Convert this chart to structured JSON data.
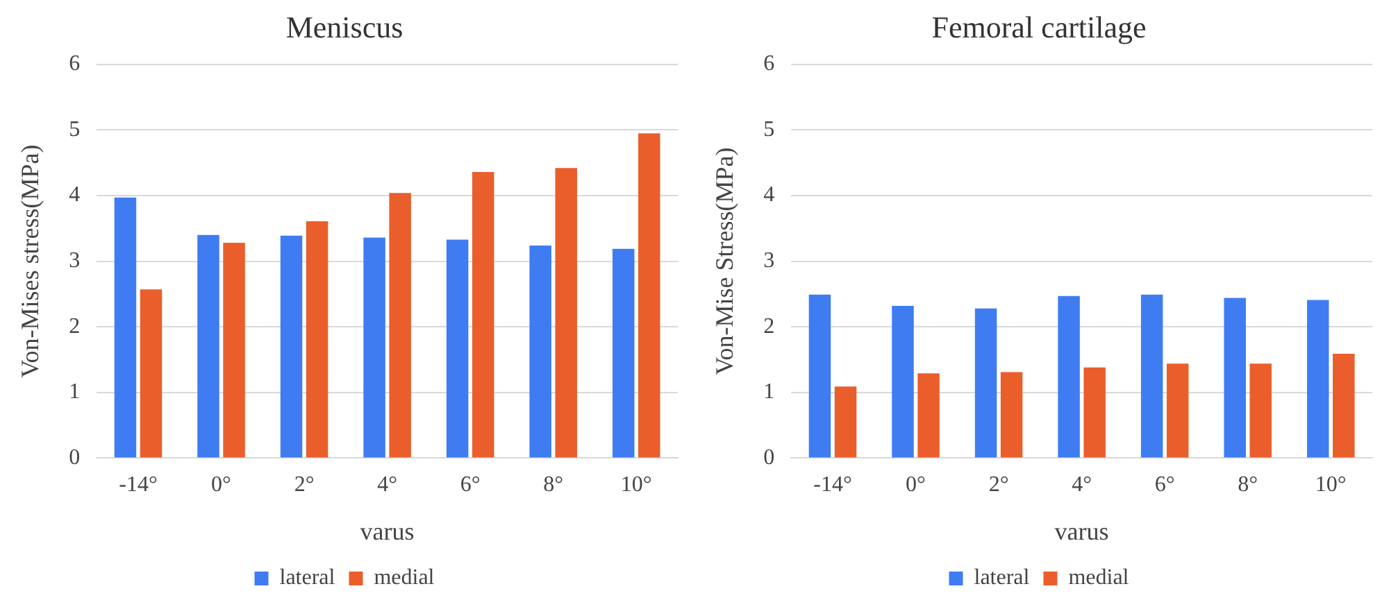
{
  "chart_data": [
    {
      "type": "bar",
      "title": "Meniscus",
      "xlabel": "varus",
      "ylabel": "Von-Mises stress(MPa)",
      "categories": [
        "-14°",
        "0°",
        "2°",
        "4°",
        "6°",
        "8°",
        "10°"
      ],
      "series": [
        {
          "name": "lateral",
          "color": "#3f7cf2",
          "values": [
            3.97,
            3.4,
            3.39,
            3.36,
            3.33,
            3.24,
            3.19
          ]
        },
        {
          "name": "medial",
          "color": "#ea5e2c",
          "values": [
            2.57,
            3.28,
            3.61,
            4.04,
            4.36,
            4.42,
            4.95
          ]
        }
      ],
      "ylim": [
        0,
        6
      ],
      "yticks": [
        0,
        1,
        2,
        3,
        4,
        5,
        6
      ],
      "grid": "y",
      "legend": "bottom"
    },
    {
      "type": "bar",
      "title": "Femoral cartilage",
      "xlabel": "varus",
      "ylabel": "Von-Mise Stress(MPa)",
      "categories": [
        "-14°",
        "0°",
        "2°",
        "4°",
        "6°",
        "8°",
        "10°"
      ],
      "series": [
        {
          "name": "lateral",
          "color": "#3f7cf2",
          "values": [
            2.49,
            2.32,
            2.28,
            2.47,
            2.49,
            2.44,
            2.41
          ]
        },
        {
          "name": "medial",
          "color": "#ea5e2c",
          "values": [
            1.09,
            1.29,
            1.31,
            1.38,
            1.44,
            1.44,
            1.59
          ]
        }
      ],
      "ylim": [
        0,
        6
      ],
      "yticks": [
        0,
        1,
        2,
        3,
        4,
        5,
        6
      ],
      "grid": "y",
      "legend": "bottom"
    }
  ]
}
